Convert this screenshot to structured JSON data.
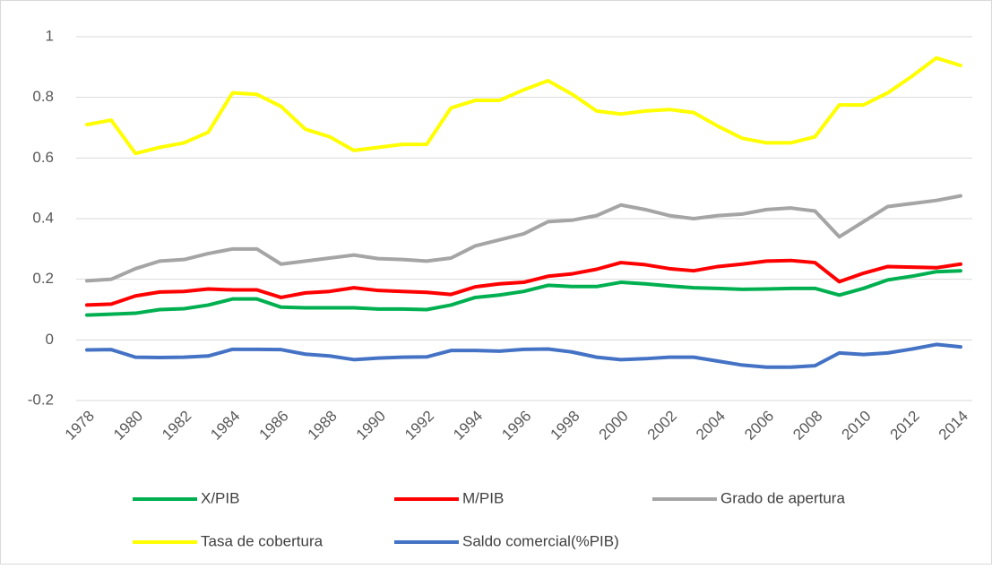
{
  "chart_data": {
    "type": "line",
    "x": [
      1978,
      1979,
      1980,
      1981,
      1982,
      1983,
      1984,
      1985,
      1986,
      1987,
      1988,
      1989,
      1990,
      1991,
      1992,
      1993,
      1994,
      1995,
      1996,
      1997,
      1998,
      1999,
      2000,
      2001,
      2002,
      2003,
      2004,
      2005,
      2006,
      2007,
      2008,
      2009,
      2010,
      2011,
      2012,
      2013,
      2014
    ],
    "xlim": [
      1978,
      2014
    ],
    "xticks": [
      1978,
      1980,
      1982,
      1984,
      1986,
      1988,
      1990,
      1992,
      1994,
      1996,
      1998,
      2000,
      2002,
      2004,
      2006,
      2008,
      2010,
      2012,
      2014
    ],
    "ylim": [
      -0.2,
      1
    ],
    "yticks": [
      -0.2,
      0,
      0.2,
      0.4,
      0.6,
      0.8,
      1
    ],
    "grid": true,
    "legend": "bottom",
    "series": [
      {
        "name": "X/PIB",
        "color": "#00b050",
        "values": [
          0.082,
          0.085,
          0.088,
          0.1,
          0.103,
          0.115,
          0.135,
          0.135,
          0.108,
          0.106,
          0.106,
          0.106,
          0.102,
          0.102,
          0.1,
          0.115,
          0.14,
          0.148,
          0.16,
          0.18,
          0.176,
          0.176,
          0.19,
          0.185,
          0.178,
          0.172,
          0.17,
          0.167,
          0.168,
          0.17,
          0.17,
          0.148,
          0.17,
          0.198,
          0.21,
          0.225,
          0.228
        ]
      },
      {
        "name": "M/PIB",
        "color": "#ff0000",
        "values": [
          0.115,
          0.118,
          0.145,
          0.158,
          0.16,
          0.168,
          0.165,
          0.165,
          0.14,
          0.155,
          0.16,
          0.172,
          0.163,
          0.16,
          0.157,
          0.15,
          0.175,
          0.185,
          0.19,
          0.21,
          0.218,
          0.233,
          0.255,
          0.248,
          0.235,
          0.228,
          0.242,
          0.25,
          0.26,
          0.262,
          0.255,
          0.192,
          0.22,
          0.242,
          0.24,
          0.238,
          0.25
        ]
      },
      {
        "name": "Grado de apertura",
        "color": "#a5a5a5",
        "values": [
          0.195,
          0.2,
          0.235,
          0.26,
          0.265,
          0.285,
          0.3,
          0.3,
          0.25,
          0.26,
          0.27,
          0.28,
          0.268,
          0.265,
          0.26,
          0.27,
          0.31,
          0.33,
          0.35,
          0.39,
          0.395,
          0.41,
          0.445,
          0.43,
          0.41,
          0.4,
          0.41,
          0.415,
          0.43,
          0.435,
          0.425,
          0.34,
          0.39,
          0.44,
          0.45,
          0.46,
          0.475
        ]
      },
      {
        "name": "Tasa de cobertura",
        "color": "#ffff00",
        "values": [
          0.71,
          0.725,
          0.615,
          0.635,
          0.65,
          0.685,
          0.815,
          0.81,
          0.77,
          0.695,
          0.67,
          0.625,
          0.635,
          0.645,
          0.645,
          0.765,
          0.79,
          0.79,
          0.825,
          0.855,
          0.81,
          0.755,
          0.745,
          0.755,
          0.76,
          0.75,
          0.705,
          0.665,
          0.65,
          0.65,
          0.67,
          0.775,
          0.775,
          0.815,
          0.87,
          0.93,
          0.905
        ]
      },
      {
        "name": "Saldo comercial(%PIB)",
        "color": "#4472c4",
        "values": [
          -0.033,
          -0.032,
          -0.057,
          -0.058,
          -0.057,
          -0.053,
          -0.031,
          -0.031,
          -0.032,
          -0.047,
          -0.053,
          -0.065,
          -0.06,
          -0.057,
          -0.056,
          -0.035,
          -0.035,
          -0.037,
          -0.031,
          -0.03,
          -0.04,
          -0.057,
          -0.065,
          -0.062,
          -0.057,
          -0.057,
          -0.07,
          -0.083,
          -0.09,
          -0.09,
          -0.085,
          -0.043,
          -0.048,
          -0.043,
          -0.03,
          -0.015,
          -0.023
        ]
      }
    ]
  }
}
